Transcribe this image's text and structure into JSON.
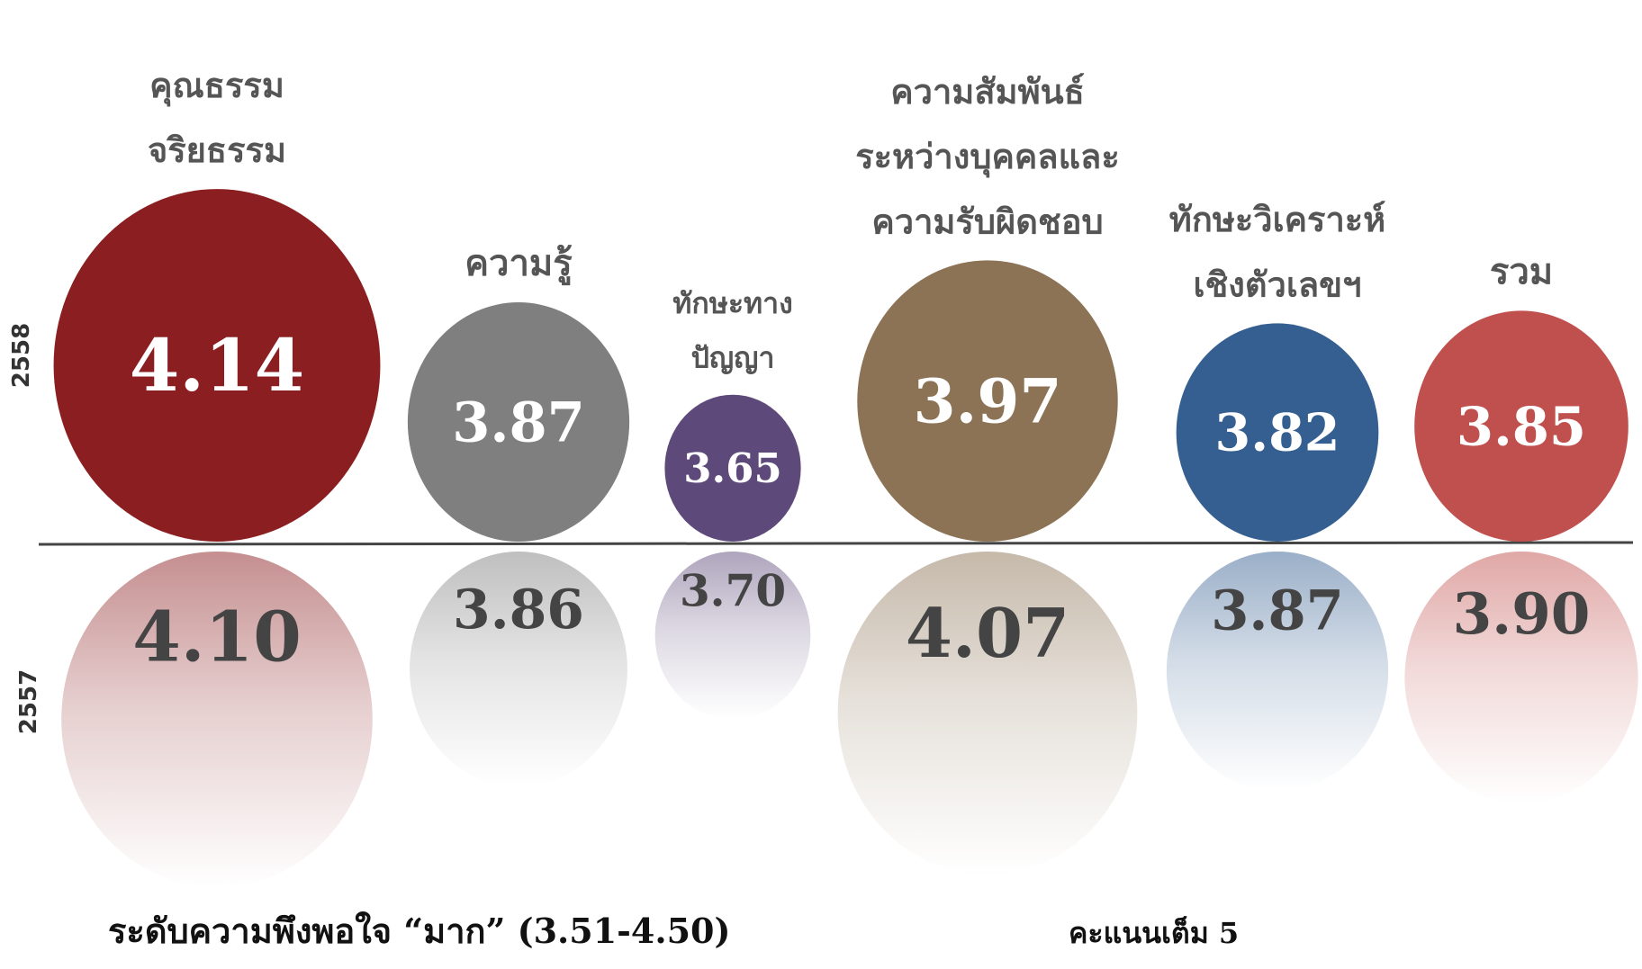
{
  "chart_data": {
    "type": "bubble",
    "categories": [
      [
        "คุณธรรม",
        "จริยธรรม"
      ],
      [
        "ความรู้"
      ],
      [
        "ทักษะทาง",
        "ปัญญา"
      ],
      [
        "ความสัมพันธ์",
        "ระหว่างบุคคลและ",
        "ความรับผิดชอบ"
      ],
      [
        "ทักษะวิเคราะห์",
        "เชิงตัวเลขฯ"
      ],
      [
        "รวม"
      ]
    ],
    "colors": [
      "#8b1e20",
      "#7f7f7f",
      "#5e4a7a",
      "#8c7355",
      "#355f91",
      "#c0504d"
    ],
    "series": [
      {
        "name": "2558",
        "values": [
          4.14,
          3.87,
          3.65,
          3.97,
          3.82,
          3.85
        ]
      },
      {
        "name": "2557",
        "values": [
          4.1,
          3.86,
          3.7,
          4.07,
          3.87,
          3.9
        ],
        "value_labels": [
          "4.10",
          "3.86",
          "3.70",
          "4.07",
          "3.87",
          "3.90"
        ]
      }
    ],
    "footnote": "ระดับความพึงพอใจ “มาก” (3.51-4.50)",
    "note": "คะแนนเต็ม 5"
  }
}
